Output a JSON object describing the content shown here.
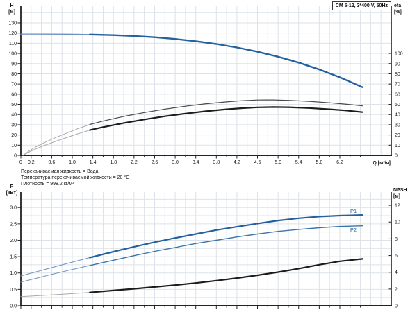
{
  "title_box": "CM 5-12, 3*400 V, 50Hz",
  "info_lines": [
    "Перекачиваемая жидкость = Вода",
    "Температура перекачиваемой жидкости = 20 °C",
    "Плотность = 998.2 кг/м³"
  ],
  "colors": {
    "blue": "#24619e",
    "blue_thin": "#6e93c1",
    "blue_med": "#3a74ad",
    "grey_thin": "#a9a9a9",
    "dark_thin": "#4a4a4a",
    "dark_thick": "#1c1c1c",
    "grid": "#dce2e8",
    "axis": "#222222",
    "text": "#111111",
    "label_blue": "#24619e"
  },
  "chart_data": [
    {
      "type": "line",
      "title": "CM 5-12, 3*400 V, 50Hz",
      "x_axis": {
        "label": "Q [м³/ч]",
        "range": [
          0,
          7.2
        ],
        "grid_step": 0.2,
        "show_labels": true,
        "major_ticks": [
          {
            "v": 0,
            "label": "0"
          },
          {
            "v": 0.2,
            "label": "0,2"
          },
          {
            "v": 0.6,
            "label": "0,6"
          },
          {
            "v": 1.0,
            "label": "1,0"
          },
          {
            "v": 1.4,
            "label": "1,4"
          },
          {
            "v": 1.8,
            "label": "1,8"
          },
          {
            "v": 2.2,
            "label": "2,2"
          },
          {
            "v": 2.6,
            "label": "2,6"
          },
          {
            "v": 3.0,
            "label": "3,0"
          },
          {
            "v": 3.4,
            "label": "3,4"
          },
          {
            "v": 3.8,
            "label": "3,8"
          },
          {
            "v": 4.2,
            "label": "4,2"
          },
          {
            "v": 4.6,
            "label": "4,6"
          },
          {
            "v": 5.0,
            "label": "5,0"
          },
          {
            "v": 5.4,
            "label": "5,4"
          },
          {
            "v": 5.8,
            "label": "5,8"
          },
          {
            "v": 6.2,
            "label": "6,2"
          }
        ],
        "minor_ticks": [
          0.4,
          0.8,
          1.2,
          1.6,
          2.0,
          2.4,
          2.8,
          3.2,
          3.6,
          4.0,
          4.4,
          4.8,
          5.2,
          5.6,
          6.0,
          6.4,
          6.6
        ]
      },
      "y_left": {
        "label_lines": [
          "H",
          "[м]"
        ],
        "range": [
          0,
          147
        ],
        "grid_step": 10,
        "ticks": [
          {
            "v": 0,
            "label": "0"
          },
          {
            "v": 10,
            "label": "10"
          },
          {
            "v": 20,
            "label": "20"
          },
          {
            "v": 30,
            "label": "30"
          },
          {
            "v": 40,
            "label": "40"
          },
          {
            "v": 50,
            "label": "50"
          },
          {
            "v": 60,
            "label": "60"
          },
          {
            "v": 70,
            "label": "70"
          },
          {
            "v": 80,
            "label": "80"
          },
          {
            "v": 90,
            "label": "90"
          },
          {
            "v": 100,
            "label": "100"
          },
          {
            "v": 110,
            "label": "110"
          },
          {
            "v": 120,
            "label": "120"
          },
          {
            "v": 130,
            "label": "130"
          }
        ]
      },
      "y_right": {
        "label_lines": [
          "eta",
          "[%]"
        ],
        "range": [
          0,
          147
        ],
        "ticks": [
          {
            "v": 0,
            "label": "0"
          },
          {
            "v": 10,
            "label": "10"
          },
          {
            "v": 20,
            "label": "20"
          },
          {
            "v": 30,
            "label": "30"
          },
          {
            "v": 40,
            "label": "40"
          },
          {
            "v": 50,
            "label": "50"
          },
          {
            "v": 60,
            "label": "60"
          },
          {
            "v": 70,
            "label": "70"
          },
          {
            "v": 80,
            "label": "80"
          },
          {
            "v": 90,
            "label": "90"
          },
          {
            "v": 100,
            "label": "100"
          }
        ]
      },
      "series": [
        {
          "id": "head-curve-below-min-flow",
          "axis": "left",
          "style": "blue_thin",
          "width": 1.3,
          "points": [
            [
              0,
              119
            ],
            [
              0.5,
              118.98
            ],
            [
              0.9,
              118.87
            ],
            [
              1.15,
              118.73
            ],
            [
              1.34,
              118.57
            ]
          ]
        },
        {
          "id": "head-curve",
          "axis": "left",
          "style": "blue",
          "width": 2.4,
          "points": [
            [
              1.34,
              118.57
            ],
            [
              1.8,
              117.96
            ],
            [
              2.2,
              117.1
            ],
            [
              2.6,
              115.87
            ],
            [
              3.0,
              114.2
            ],
            [
              3.4,
              112.0
            ],
            [
              3.8,
              109.23
            ],
            [
              4.2,
              105.81
            ],
            [
              4.6,
              101.68
            ],
            [
              5.0,
              96.75
            ],
            [
              5.4,
              90.97
            ],
            [
              5.8,
              84.28
            ],
            [
              6.2,
              76.59
            ],
            [
              6.64,
              66.9
            ]
          ]
        },
        {
          "id": "eta-pump-curve-below-min-flow",
          "axis": "right",
          "style": "grey_thin",
          "width": 1,
          "points": [
            [
              0.04,
              0
            ],
            [
              0.15,
              4
            ],
            [
              0.3,
              8.5
            ],
            [
              0.5,
              13.5
            ],
            [
              0.7,
              18
            ],
            [
              0.9,
              22
            ],
            [
              1.1,
              26
            ],
            [
              1.34,
              30.3
            ]
          ]
        },
        {
          "id": "eta-pump-curve",
          "axis": "right",
          "style": "dark_thin",
          "width": 1.2,
          "points": [
            [
              1.34,
              30.3
            ],
            [
              1.6,
              33.6
            ],
            [
              2.0,
              38.2
            ],
            [
              2.4,
              42
            ],
            [
              2.8,
              45.3
            ],
            [
              3.2,
              48.2
            ],
            [
              3.6,
              50.6
            ],
            [
              4.0,
              52.5
            ],
            [
              4.3,
              53.6
            ],
            [
              4.6,
              54.3
            ],
            [
              4.9,
              54.4
            ],
            [
              5.2,
              54
            ],
            [
              5.6,
              53
            ],
            [
              6.0,
              51.6
            ],
            [
              6.3,
              50.3
            ],
            [
              6.64,
              48.5
            ]
          ]
        },
        {
          "id": "eta-total-curve-below-min-flow",
          "axis": "right",
          "style": "grey_thin",
          "width": 1,
          "points": [
            [
              0.04,
              0
            ],
            [
              0.15,
              3
            ],
            [
              0.3,
              6.5
            ],
            [
              0.5,
              10.5
            ],
            [
              0.7,
              14.2
            ],
            [
              0.9,
              17.6
            ],
            [
              1.1,
              21
            ],
            [
              1.34,
              24.8
            ]
          ]
        },
        {
          "id": "eta-total-curve",
          "axis": "right",
          "style": "dark_thick",
          "width": 2.2,
          "points": [
            [
              1.34,
              24.8
            ],
            [
              1.6,
              27.7
            ],
            [
              2.0,
              31.7
            ],
            [
              2.4,
              35.2
            ],
            [
              2.8,
              38.3
            ],
            [
              3.2,
              41
            ],
            [
              3.6,
              43.3
            ],
            [
              4.0,
              45.2
            ],
            [
              4.3,
              46.3
            ],
            [
              4.6,
              47.1
            ],
            [
              4.9,
              47.4
            ],
            [
              5.2,
              47.2
            ],
            [
              5.6,
              46.4
            ],
            [
              6.0,
              45.2
            ],
            [
              6.3,
              44.1
            ],
            [
              6.64,
              42.4
            ]
          ]
        }
      ]
    },
    {
      "type": "line",
      "x_axis": {
        "label": "",
        "range": [
          0,
          7.2
        ],
        "grid_step": 0.2,
        "show_labels": false,
        "major_ticks": [
          {
            "v": 0,
            "label": ""
          },
          {
            "v": 0.2,
            "label": ""
          },
          {
            "v": 0.6,
            "label": ""
          },
          {
            "v": 1.0,
            "label": ""
          },
          {
            "v": 1.4,
            "label": ""
          },
          {
            "v": 1.8,
            "label": ""
          },
          {
            "v": 2.2,
            "label": ""
          },
          {
            "v": 2.6,
            "label": ""
          },
          {
            "v": 3.0,
            "label": ""
          },
          {
            "v": 3.4,
            "label": ""
          },
          {
            "v": 3.8,
            "label": ""
          },
          {
            "v": 4.2,
            "label": ""
          },
          {
            "v": 4.6,
            "label": ""
          },
          {
            "v": 5.0,
            "label": ""
          },
          {
            "v": 5.4,
            "label": ""
          },
          {
            "v": 5.8,
            "label": ""
          },
          {
            "v": 6.2,
            "label": ""
          }
        ],
        "minor_ticks": [
          0.4,
          0.8,
          1.2,
          1.6,
          2.0,
          2.4,
          2.8,
          3.2,
          3.6,
          4.0,
          4.4,
          4.8,
          5.2,
          5.6,
          6.0,
          6.4,
          6.6
        ]
      },
      "y_left": {
        "label_lines": [
          "P",
          "[кВт]"
        ],
        "range": [
          0,
          3.47
        ],
        "grid_step": 0.25,
        "ticks": [
          {
            "v": 0,
            "label": "0.0"
          },
          {
            "v": 0.5,
            "label": "0.5"
          },
          {
            "v": 1.0,
            "label": "1.0"
          },
          {
            "v": 1.5,
            "label": "1.5"
          },
          {
            "v": 2.0,
            "label": "2.0"
          },
          {
            "v": 2.5,
            "label": "2.5"
          },
          {
            "v": 3.0,
            "label": "3.0"
          }
        ]
      },
      "y_right": {
        "label_lines": [
          "NPSH",
          "[м]"
        ],
        "range": [
          0,
          13.58
        ],
        "ticks": [
          {
            "v": 0,
            "label": "0"
          },
          {
            "v": 2,
            "label": "2"
          },
          {
            "v": 4,
            "label": "4"
          },
          {
            "v": 6,
            "label": "6"
          },
          {
            "v": 8,
            "label": "8"
          },
          {
            "v": 10,
            "label": "10"
          },
          {
            "v": 12,
            "label": "12"
          }
        ]
      },
      "series": [
        {
          "id": "p1-curve-below-min-flow",
          "axis": "left",
          "style": "blue_thin",
          "width": 1.1,
          "points": [
            [
              0,
              0.91
            ],
            [
              0.45,
              1.1
            ],
            [
              0.9,
              1.29
            ],
            [
              1.34,
              1.47
            ]
          ]
        },
        {
          "id": "p1-curve",
          "axis": "left",
          "style": "blue",
          "width": 2.2,
          "label": "P1",
          "points": [
            [
              1.34,
              1.47
            ],
            [
              1.8,
              1.65
            ],
            [
              2.2,
              1.8
            ],
            [
              2.6,
              1.94
            ],
            [
              3.0,
              2.07
            ],
            [
              3.4,
              2.19
            ],
            [
              3.8,
              2.31
            ],
            [
              4.2,
              2.41
            ],
            [
              4.6,
              2.51
            ],
            [
              5.0,
              2.6
            ],
            [
              5.4,
              2.67
            ],
            [
              5.8,
              2.72
            ],
            [
              6.2,
              2.75
            ],
            [
              6.64,
              2.77
            ]
          ]
        },
        {
          "id": "p2-curve-below-min-flow",
          "axis": "left",
          "style": "blue_thin",
          "width": 1,
          "points": [
            [
              0,
              0.72
            ],
            [
              0.45,
              0.9
            ],
            [
              0.9,
              1.07
            ],
            [
              1.34,
              1.23
            ]
          ]
        },
        {
          "id": "p2-curve",
          "axis": "left",
          "style": "blue_med",
          "width": 1.4,
          "label": "P2",
          "points": [
            [
              1.34,
              1.23
            ],
            [
              1.8,
              1.39
            ],
            [
              2.2,
              1.53
            ],
            [
              2.6,
              1.66
            ],
            [
              3.0,
              1.78
            ],
            [
              3.4,
              1.9
            ],
            [
              3.8,
              2.0
            ],
            [
              4.2,
              2.1
            ],
            [
              4.6,
              2.19
            ],
            [
              5.0,
              2.27
            ],
            [
              5.4,
              2.33
            ],
            [
              5.8,
              2.38
            ],
            [
              6.2,
              2.42
            ],
            [
              6.64,
              2.44
            ]
          ]
        },
        {
          "id": "npsh-curve-below-min-flow",
          "axis": "right",
          "style": "grey_thin",
          "width": 1,
          "points": [
            [
              0,
              1.1
            ],
            [
              0.45,
              1.25
            ],
            [
              0.9,
              1.42
            ],
            [
              1.34,
              1.6
            ]
          ]
        },
        {
          "id": "npsh-curve",
          "axis": "right",
          "style": "dark_thick",
          "width": 2.2,
          "points": [
            [
              1.34,
              1.6
            ],
            [
              1.8,
              1.83
            ],
            [
              2.2,
              2.03
            ],
            [
              2.6,
              2.24
            ],
            [
              3.0,
              2.47
            ],
            [
              3.4,
              2.72
            ],
            [
              3.8,
              3.0
            ],
            [
              4.2,
              3.3
            ],
            [
              4.6,
              3.64
            ],
            [
              5.0,
              4.02
            ],
            [
              5.4,
              4.44
            ],
            [
              5.8,
              4.9
            ],
            [
              6.2,
              5.32
            ],
            [
              6.64,
              5.6
            ]
          ]
        }
      ]
    }
  ]
}
